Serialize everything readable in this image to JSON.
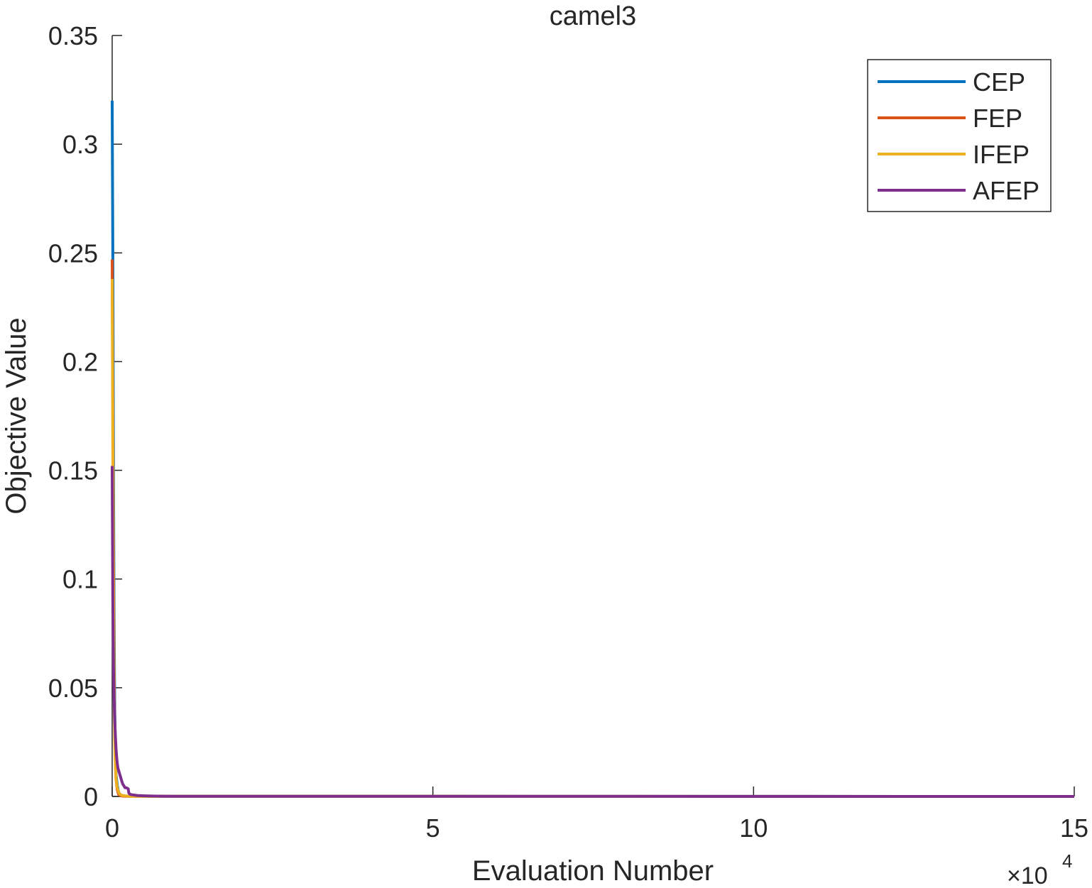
{
  "chart_data": {
    "type": "line",
    "title": "camel3",
    "xlabel": "Evaluation Number",
    "ylabel": "Objective Value",
    "x_exponent_label": "×10",
    "x_exponent_power": "4",
    "xlim": [
      0,
      15
    ],
    "ylim": [
      0,
      0.35
    ],
    "xticks": [
      0,
      5,
      10,
      15
    ],
    "yticks": [
      0,
      0.05,
      0.1,
      0.15,
      0.2,
      0.25,
      0.3,
      0.35
    ],
    "xtick_labels": [
      "0",
      "5",
      "10",
      "15"
    ],
    "ytick_labels": [
      "0",
      "0.05",
      "0.1",
      "0.15",
      "0.2",
      "0.25",
      "0.3",
      "0.35"
    ],
    "grid": false,
    "legend_position": "top-right",
    "series": [
      {
        "name": "CEP",
        "color": "#0072BD",
        "x": [
          0,
          0.01,
          0.02,
          0.03,
          0.04,
          0.05,
          0.06,
          0.08,
          0.1,
          0.12,
          0.15,
          0.2,
          0.25,
          15
        ],
        "y": [
          0.32,
          0.25,
          0.15,
          0.08,
          0.04,
          0.02,
          0.01,
          0.005,
          0.002,
          0.001,
          0.0005,
          0.0002,
          0.0001,
          0.0
        ]
      },
      {
        "name": "FEP",
        "color": "#D95319",
        "x": [
          0,
          0.01,
          0.02,
          0.03,
          0.04,
          0.05,
          0.06,
          0.08,
          0.1,
          0.12,
          0.15,
          0.2,
          15
        ],
        "y": [
          0.247,
          0.18,
          0.11,
          0.06,
          0.03,
          0.015,
          0.008,
          0.003,
          0.001,
          0.0005,
          0.0002,
          0.0001,
          0.0
        ]
      },
      {
        "name": "IFEP",
        "color": "#EDB120",
        "x": [
          0,
          0.01,
          0.02,
          0.03,
          0.04,
          0.05,
          0.06,
          0.08,
          0.1,
          0.12,
          0.15,
          0.2,
          0.25,
          0.3,
          15
        ],
        "y": [
          0.238,
          0.16,
          0.09,
          0.05,
          0.025,
          0.015,
          0.008,
          0.004,
          0.002,
          0.001,
          0.0005,
          0.0003,
          0.0001,
          5e-05,
          0.0
        ]
      },
      {
        "name": "AFEP",
        "color": "#7E2F8E",
        "x": [
          0,
          0.01,
          0.02,
          0.03,
          0.04,
          0.05,
          0.06,
          0.07,
          0.08,
          0.09,
          0.1,
          0.12,
          0.14,
          0.16,
          0.18,
          0.2,
          0.22,
          0.25,
          0.26,
          0.28,
          0.3,
          0.35,
          0.4,
          0.5,
          0.6,
          0.8,
          1.0,
          15
        ],
        "y": [
          0.152,
          0.09,
          0.06,
          0.045,
          0.035,
          0.028,
          0.022,
          0.018,
          0.015,
          0.013,
          0.012,
          0.01,
          0.008,
          0.006,
          0.005,
          0.004,
          0.004,
          0.0035,
          0.0015,
          0.001,
          0.0008,
          0.0006,
          0.0004,
          0.0003,
          0.0002,
          0.0001,
          5e-05,
          0.0
        ]
      }
    ]
  }
}
